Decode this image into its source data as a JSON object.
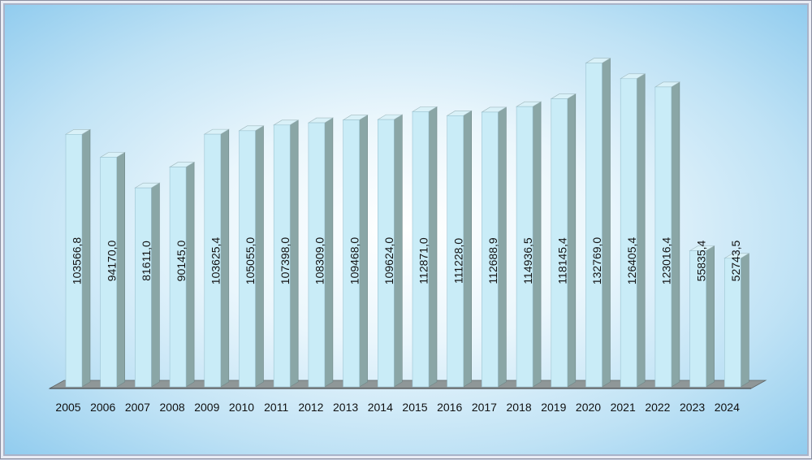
{
  "chart_data": {
    "type": "bar",
    "title": "",
    "xlabel": "",
    "ylabel": "",
    "categories": [
      "2005",
      "2006",
      "2007",
      "2008",
      "2009",
      "2010",
      "2011",
      "2012",
      "2013",
      "2014",
      "2015",
      "2016",
      "2017",
      "2018",
      "2019",
      "2020",
      "2021",
      "2022",
      "2023",
      "2024"
    ],
    "values": [
      103566.8,
      94170.0,
      81611.0,
      90145.0,
      103625.4,
      105055.0,
      107398.0,
      108309.0,
      109468.0,
      109624.0,
      112871.0,
      111228.0,
      112688.9,
      114936.5,
      118145.4,
      132769.0,
      126405.4,
      123016.4,
      55835.4,
      52743.5
    ],
    "data_labels": [
      "103566,8",
      "94170,0",
      "81611,0",
      "90145,0",
      "103625,4",
      "105055,0",
      "107398,0",
      "108309,0",
      "109468,0",
      "109624,0",
      "112871,0",
      "111228,0",
      "112688,9",
      "114936,5",
      "118145,4",
      "132769,0",
      "126405,4",
      "123016,4",
      "55835,4",
      "52743,5"
    ],
    "ylim": [
      0,
      135000
    ],
    "grid": false,
    "colors": {
      "bar_front": "#c9ecf7",
      "bar_side": "#8aa6a6",
      "bar_top": "#d9f1f8",
      "floor": "#8f9798"
    }
  }
}
